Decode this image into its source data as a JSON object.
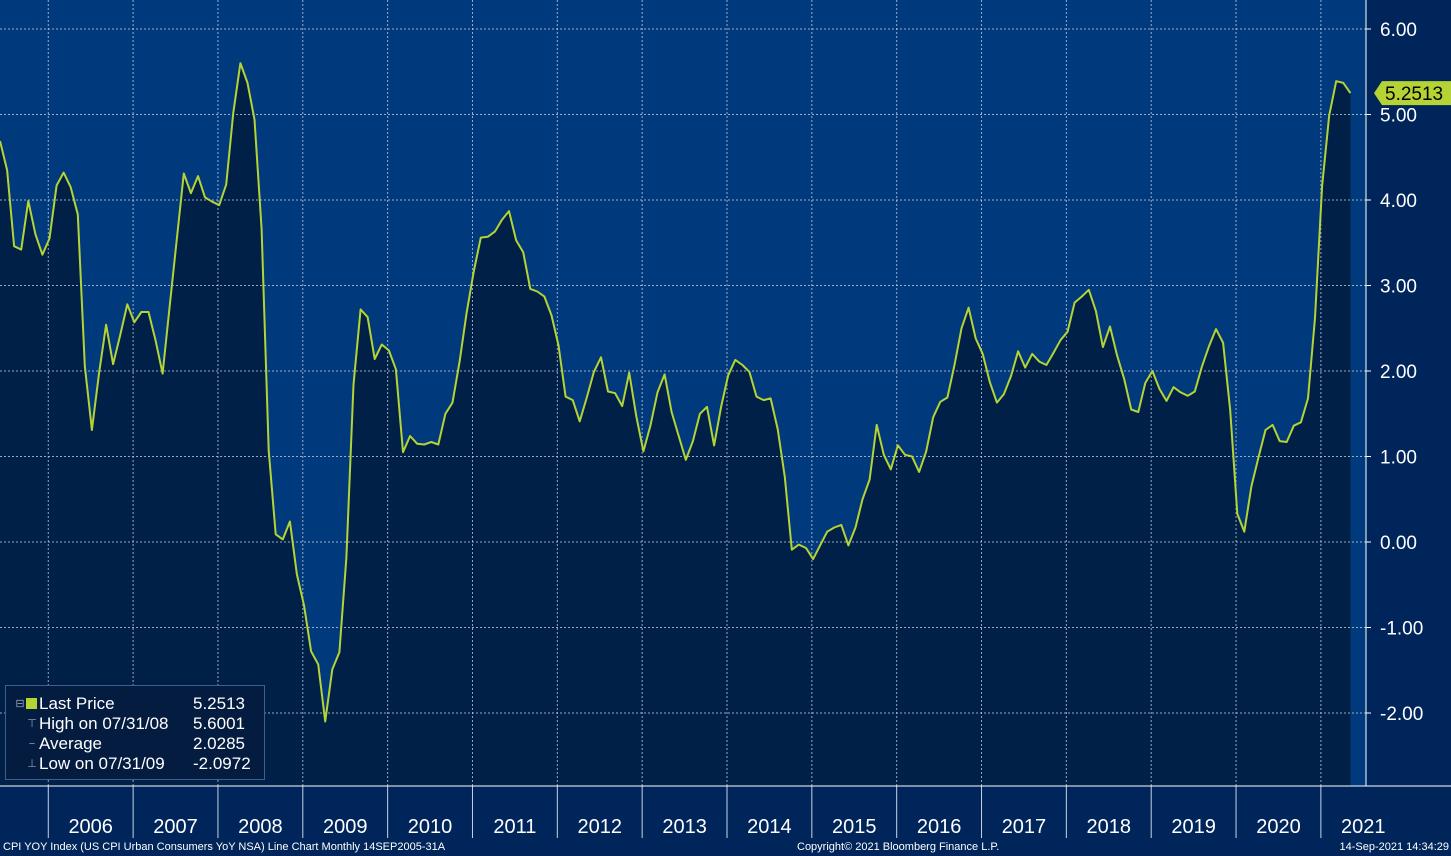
{
  "chart_data": {
    "type": "area",
    "ticker_description": "CPI YOY Index (US CPI Urban Consumers YoY NSA) Line Chart  Monthly 14SEP2005-31A",
    "x_tick_labels": [
      "2006",
      "2007",
      "2008",
      "2009",
      "2010",
      "2011",
      "2012",
      "2013",
      "2014",
      "2015",
      "2016",
      "2017",
      "2018",
      "2019",
      "2020",
      "2021"
    ],
    "y_tick_labels": [
      "6.00",
      "5.00",
      "4.00",
      "3.00",
      "2.00",
      "1.00",
      "0.00",
      "-1.00",
      "-2.00"
    ],
    "ylim": [
      -2.7,
      6.3
    ],
    "grid": true,
    "last_value_label": "5.2513",
    "series": [
      {
        "name": "Last Price",
        "start": "2005-09",
        "frequency": "monthly",
        "values": [
          4.69,
          4.35,
          3.46,
          3.42,
          3.99,
          3.6,
          3.36,
          3.55,
          4.17,
          4.32,
          4.15,
          3.83,
          2.06,
          1.31,
          1.97,
          2.54,
          2.08,
          2.42,
          2.78,
          2.57,
          2.69,
          2.69,
          2.36,
          1.97,
          2.76,
          3.54,
          4.31,
          4.08,
          4.28,
          4.03,
          3.98,
          3.94,
          4.18,
          5.02,
          5.6,
          5.37,
          4.94,
          3.66,
          1.07,
          0.09,
          0.03,
          0.24,
          -0.38,
          -0.74,
          -1.28,
          -1.43,
          -2.1,
          -1.49,
          -1.29,
          -0.18,
          1.84,
          2.72,
          2.63,
          2.14,
          2.31,
          2.24,
          2.02,
          1.05,
          1.24,
          1.15,
          1.14,
          1.17,
          1.14,
          1.5,
          1.63,
          2.11,
          2.68,
          3.16,
          3.56,
          3.57,
          3.63,
          3.77,
          3.87,
          3.53,
          3.39,
          2.96,
          2.93,
          2.87,
          2.65,
          2.3,
          1.7,
          1.66,
          1.41,
          1.69,
          1.99,
          2.16,
          1.76,
          1.74,
          1.59,
          1.98,
          1.47,
          1.06,
          1.36,
          1.75,
          1.96,
          1.52,
          1.24,
          0.96,
          1.18,
          1.5,
          1.58,
          1.13,
          1.58,
          1.95,
          2.13,
          2.07,
          1.99,
          1.7,
          1.66,
          1.68,
          1.32,
          0.76,
          -0.09,
          -0.03,
          -0.07,
          -0.2,
          -0.04,
          0.12,
          0.17,
          0.2,
          -0.04,
          0.17,
          0.5,
          0.73,
          1.37,
          1.02,
          0.85,
          1.13,
          1.02,
          1.0,
          0.82,
          1.06,
          1.46,
          1.64,
          1.69,
          2.07,
          2.5,
          2.74,
          2.38,
          2.2,
          1.87,
          1.63,
          1.73,
          1.94,
          2.23,
          2.04,
          2.2,
          2.11,
          2.07,
          2.21,
          2.36,
          2.46,
          2.8,
          2.87,
          2.95,
          2.7,
          2.28,
          2.52,
          2.18,
          1.91,
          1.55,
          1.52,
          1.86,
          2.0,
          1.79,
          1.65,
          1.81,
          1.75,
          1.71,
          1.76,
          2.05,
          2.29,
          2.49,
          2.33,
          1.54,
          0.33,
          0.12,
          0.65,
          0.99,
          1.31,
          1.37,
          1.18,
          1.17,
          1.36,
          1.4,
          1.68,
          2.62,
          4.16,
          4.99,
          5.39,
          5.37,
          5.25
        ]
      }
    ],
    "legend": {
      "last_price_label": "Last Price",
      "last_price_value": "5.2513",
      "high_label": "High on 07/31/08",
      "high_value": "5.6001",
      "average_label": "Average",
      "average_value": "2.0285",
      "low_label": "Low on 07/31/09",
      "low_value": "-2.0972"
    }
  },
  "footer": {
    "left": "CPI YOY Index (US CPI Urban Consumers YoY NSA) Line Chart  Monthly 14SEP2005-31A",
    "center": "Copyright© 2021 Bloomberg Finance L.P.",
    "right": "14-Sep-2021 14:34:29"
  },
  "colors": {
    "background": "#00255a",
    "plot_upper": "#013a7c",
    "area_fill": "#012047",
    "line": "#b5d334",
    "last_value_badge": "#b5d334",
    "text": "#ffffff"
  }
}
